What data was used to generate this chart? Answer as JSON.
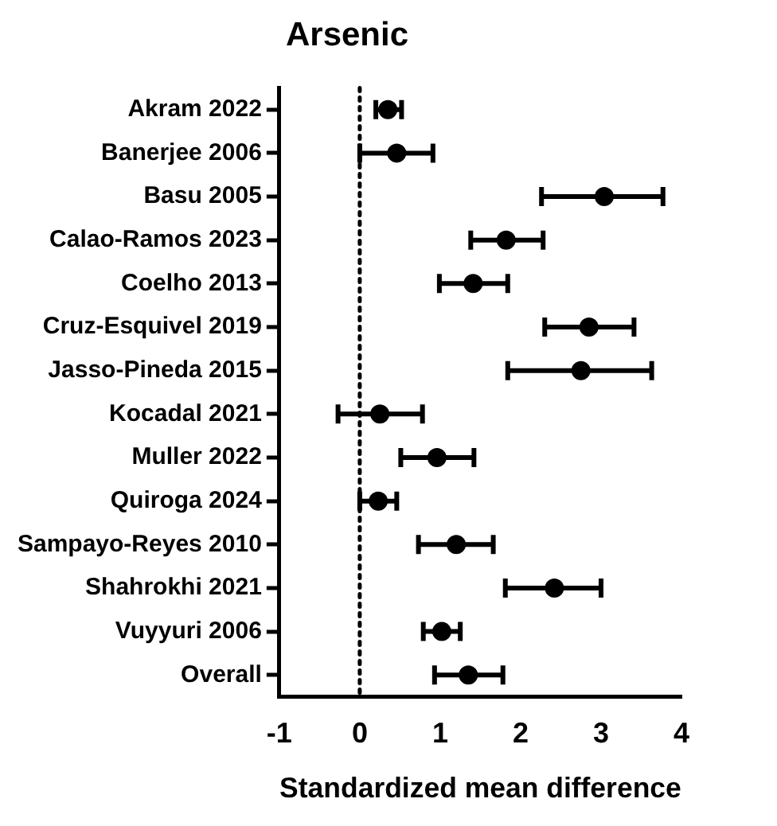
{
  "chart_data": {
    "type": "scatter",
    "title": "Arsenic",
    "xlabel": "Standardized mean difference",
    "categories": [
      "Akram 2022",
      "Banerjee 2006",
      "Basu 2005",
      "Calao-Ramos 2023",
      "Coelho 2013",
      "Cruz-Esquivel 2019",
      "Jasso-Pineda 2015",
      "Kocadal 2021",
      "Muller 2022",
      "Quiroga 2024",
      "Sampayo-Reyes 2010",
      "Shahrokhi 2021",
      "Vuyyuri 2006",
      "Overall"
    ],
    "series": [
      {
        "color": "#000000",
        "values": [
          0.35,
          0.46,
          3.04,
          1.82,
          1.41,
          2.85,
          2.75,
          0.25,
          0.96,
          0.23,
          1.2,
          2.42,
          1.02,
          1.35
        ],
        "errors": [
          [
            0.2,
            0.52
          ],
          [
            0.0,
            0.91
          ],
          [
            2.26,
            3.77
          ],
          [
            1.38,
            2.28
          ],
          [
            0.99,
            1.84
          ],
          [
            2.3,
            3.41
          ],
          [
            1.84,
            3.63
          ],
          [
            -0.27,
            0.78
          ],
          [
            0.51,
            1.42
          ],
          [
            0.0,
            0.46
          ],
          [
            0.73,
            1.66
          ],
          [
            1.81,
            3.0
          ],
          [
            0.79,
            1.25
          ],
          [
            0.93,
            1.78
          ]
        ]
      }
    ],
    "orientation": "horizontal",
    "xlim": [
      -1,
      4
    ],
    "xticks": [
      -1,
      0,
      1,
      2,
      3,
      4
    ],
    "grid": false,
    "legend": false,
    "marker": "circle",
    "ref_lines": [
      {
        "axis": "x",
        "value": 0,
        "line_style": "dotted",
        "color": "#000000"
      }
    ]
  }
}
